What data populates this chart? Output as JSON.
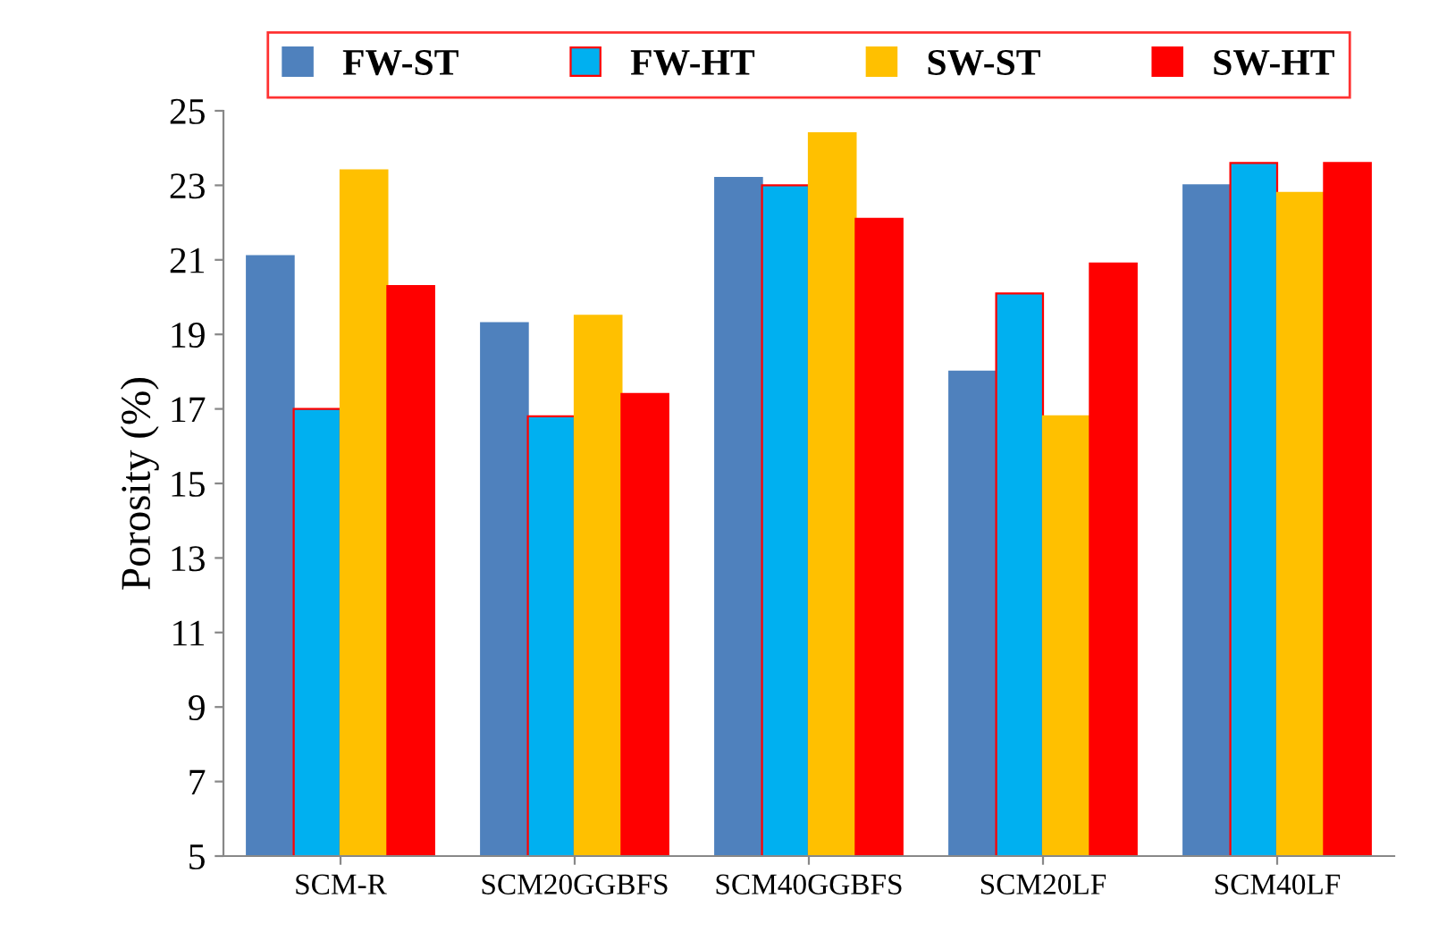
{
  "chart_data": {
    "type": "bar",
    "ylabel": "Porosity (%)",
    "categories": [
      "SCM-R",
      "SCM20GGBFS",
      "SCM40GGBFS",
      "SCM20LF",
      "SCM40LF"
    ],
    "series": [
      {
        "name": "FW-ST",
        "color": "#4f81bd",
        "values": [
          21.1,
          19.3,
          23.2,
          18.0,
          23.0
        ]
      },
      {
        "name": "FW-HT",
        "color": "#00b0f0",
        "values": [
          17.0,
          16.8,
          23.0,
          20.1,
          23.6
        ]
      },
      {
        "name": "SW-ST",
        "color": "#ffc000",
        "values": [
          23.4,
          19.5,
          24.4,
          16.8,
          22.8
        ]
      },
      {
        "name": "SW-HT",
        "color": "#ff0000",
        "values": [
          20.3,
          17.4,
          22.1,
          20.9,
          23.6
        ]
      }
    ],
    "ylim": [
      5,
      25
    ],
    "yticks": [
      5,
      7,
      9,
      11,
      13,
      15,
      17,
      19,
      21,
      23,
      25
    ],
    "grid": false,
    "legend": "top"
  }
}
